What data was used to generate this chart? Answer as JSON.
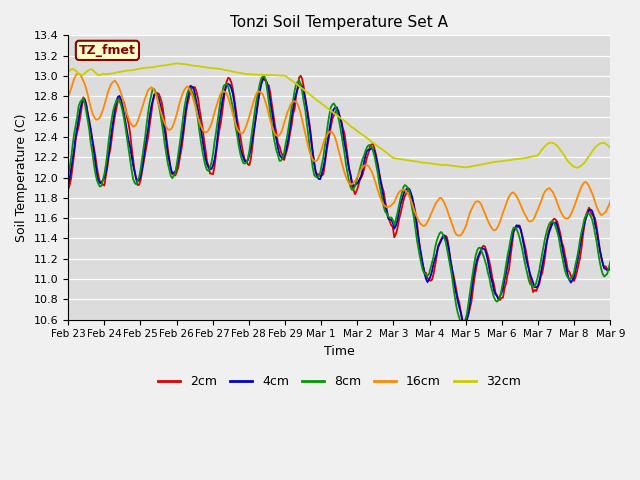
{
  "title": "Tonzi Soil Temperature Set A",
  "xlabel": "Time",
  "ylabel": "Soil Temperature (C)",
  "ylim": [
    10.6,
    13.4
  ],
  "annotation_text": "TZ_fmet",
  "legend_labels": [
    "2cm",
    "4cm",
    "8cm",
    "16cm",
    "32cm"
  ],
  "legend_colors": [
    "#dd0000",
    "#0000cc",
    "#009900",
    "#ff8800",
    "#cccc00"
  ],
  "line_width": 1.3,
  "grid_color": "#cccccc",
  "bg_color": "#dcdcdc",
  "fig_color": "#f0f0f0",
  "yticks": [
    10.6,
    10.8,
    11.0,
    11.2,
    11.4,
    11.6,
    11.8,
    12.0,
    12.2,
    12.4,
    12.6,
    12.8,
    13.0,
    13.2,
    13.4
  ],
  "x_tick_labels": [
    "Feb 23",
    "Feb 24",
    "Feb 25",
    "Feb 26",
    "Feb 27",
    "Feb 28",
    "Feb 29",
    "Mar 1",
    "Mar 2",
    "Mar 3",
    "Mar 4",
    "Mar 5",
    "Mar 6",
    "Mar 7",
    "Mar 8",
    "Mar 9"
  ]
}
